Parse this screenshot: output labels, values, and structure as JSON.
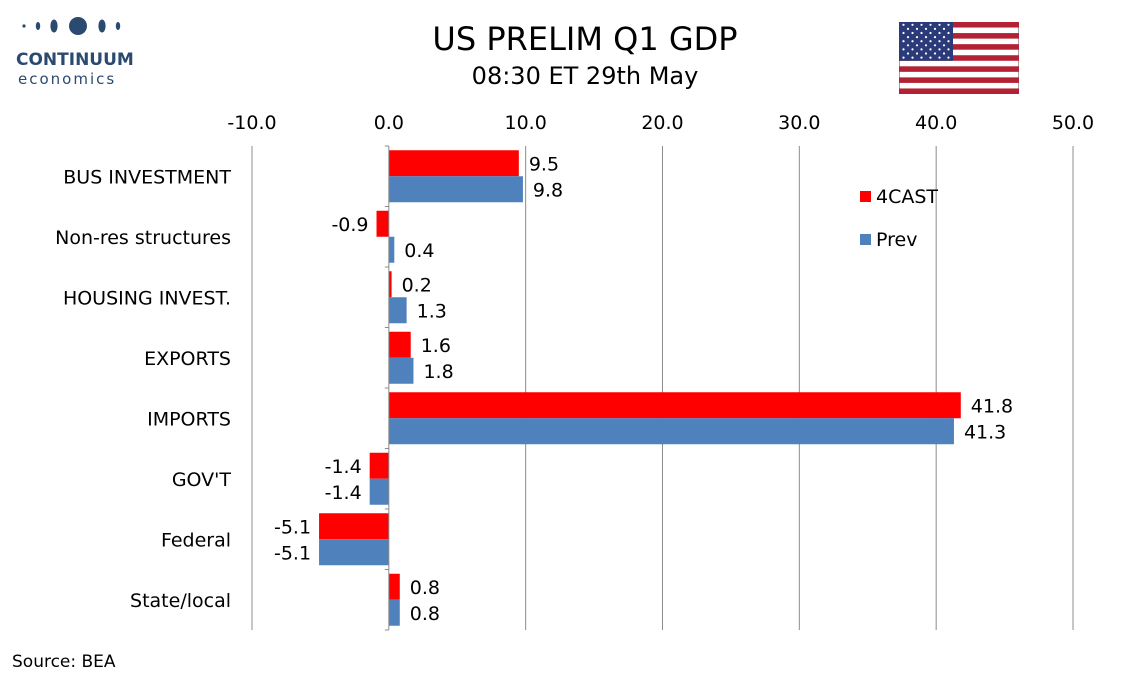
{
  "header": {
    "title": "US PRELIM Q1 GDP",
    "subtitle": "08:30 ET 29th May"
  },
  "logo": {
    "line1": "CONTINUUM",
    "line2": "economics",
    "color": "#2b4a6f"
  },
  "flag_icon": "us-flag-icon",
  "footer": {
    "source": "Source: BEA"
  },
  "chart_data": {
    "type": "bar",
    "orientation": "horizontal",
    "xlim": [
      -10,
      50
    ],
    "x_ticks": [
      "-10.0",
      "0.0",
      "10.0",
      "20.0",
      "30.0",
      "40.0",
      "50.0"
    ],
    "x_tick_values": [
      -10,
      0,
      10,
      20,
      30,
      40,
      50
    ],
    "x_axis_position": "top",
    "grid": "vertical",
    "legend_placement": "top-right",
    "categories": [
      "BUS INVESTMENT",
      "Non-res structures",
      "HOUSING INVEST.",
      "EXPORTS",
      "IMPORTS",
      "GOV'T",
      "Federal",
      "State/local"
    ],
    "series": [
      {
        "name": "4CAST",
        "color": "#ff0000",
        "values": [
          9.5,
          -0.9,
          0.2,
          1.6,
          41.8,
          -1.4,
          -5.1,
          0.8
        ],
        "labels": [
          "9.5",
          "-0.9",
          "0.2",
          "1.6",
          "41.8",
          "-1.4",
          "-5.1",
          "0.8"
        ]
      },
      {
        "name": "Prev",
        "color": "#4f81bd",
        "values": [
          9.8,
          0.4,
          1.3,
          1.8,
          41.3,
          -1.4,
          -5.1,
          0.8
        ],
        "labels": [
          "9.8",
          "0.4",
          "1.3",
          "1.8",
          "41.3",
          "-1.4",
          "-5.1",
          "0.8"
        ]
      }
    ]
  }
}
